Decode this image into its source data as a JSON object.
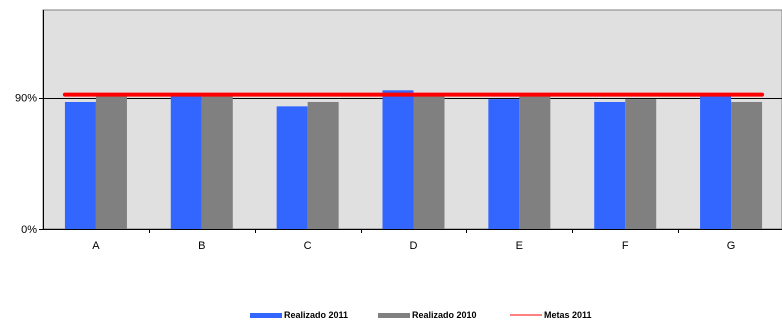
{
  "chart_data": {
    "type": "bar",
    "categories": [
      "A",
      "B",
      "C",
      "D",
      "E",
      "F",
      "G"
    ],
    "series": [
      {
        "name": "Realizado 2011",
        "kind": "bar",
        "color": "#3366FF",
        "values": [
          0.87,
          0.92,
          0.84,
          0.95,
          0.89,
          0.87,
          0.91
        ]
      },
      {
        "name": "Realizado 2010",
        "kind": "bar",
        "color": "#808080",
        "values": [
          0.91,
          0.93,
          0.87,
          0.91,
          0.91,
          0.89,
          0.87
        ]
      },
      {
        "name": "Metas 2011",
        "kind": "line",
        "color": "#FF0000",
        "values": [
          0.92,
          0.92,
          0.92,
          0.92,
          0.92,
          0.92,
          0.92
        ]
      }
    ],
    "y_ticks": [
      "0%",
      "90%"
    ],
    "y_tick_values": [
      0,
      0.9
    ],
    "ylim": [
      0,
      1.5
    ],
    "grid": "horizontal at 90%",
    "plot_background": "#E0E0E0",
    "legend_position": "bottom",
    "title": "",
    "xlabel": "",
    "ylabel": ""
  }
}
